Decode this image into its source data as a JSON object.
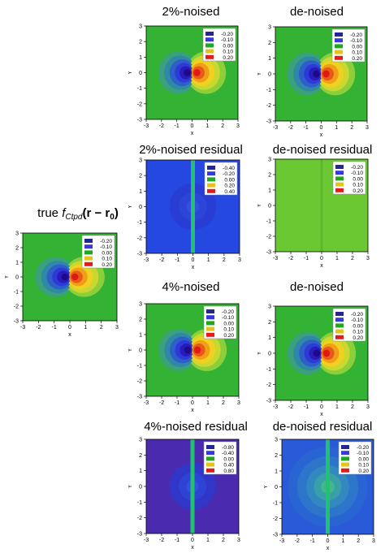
{
  "true_panel": {
    "prefix": "true ",
    "func": "f",
    "subscript": "Ctpd",
    "argument": "(r − r",
    "arg_sub": "0",
    "arg_close": ")"
  },
  "chart_data": [
    {
      "id": "true",
      "type": "heatmap",
      "title": "",
      "xlabel": "x",
      "ylabel": "Y",
      "xlim": [
        -3,
        3
      ],
      "ylim": [
        -3,
        3
      ],
      "xticks": [
        -3,
        -2,
        -1,
        0,
        1,
        2,
        3
      ],
      "yticks": [
        -3,
        -2,
        -1,
        0,
        1,
        2,
        3
      ],
      "legend": {
        "placement": "top-right",
        "levels": [
          "-0.20",
          "-0.10",
          "0.00",
          "0.10",
          "0.20"
        ],
        "colors": [
          "#262693",
          "#3838e0",
          "#1fa81f",
          "#e6c21a",
          "#e21c1c"
        ]
      },
      "field": "dipole",
      "amplitude": 0.2
    },
    {
      "id": "n2",
      "type": "heatmap",
      "title": "2%-noised",
      "xlabel": "x",
      "ylabel": "Y",
      "xlim": [
        -3,
        3
      ],
      "ylim": [
        -3,
        3
      ],
      "xticks": [
        -3,
        -2,
        -1,
        0,
        1,
        2,
        3
      ],
      "yticks": [
        -3,
        -2,
        -1,
        0,
        1,
        2,
        3
      ],
      "legend": {
        "placement": "top-right",
        "levels": [
          "-0.20",
          "-0.10",
          "0.00",
          "0.10",
          "0.20"
        ],
        "colors": [
          "#262693",
          "#3838e0",
          "#1fa81f",
          "#e6c21a",
          "#e21c1c"
        ]
      },
      "field": "dipole",
      "amplitude": 0.2
    },
    {
      "id": "dn2",
      "type": "heatmap",
      "title": "de-noised",
      "xlabel": "x",
      "ylabel": "Y",
      "xlim": [
        -3,
        3
      ],
      "ylim": [
        -3,
        3
      ],
      "xticks": [
        -3,
        -2,
        -1,
        0,
        1,
        2,
        3
      ],
      "yticks": [
        -3,
        -2,
        -1,
        0,
        1,
        2,
        3
      ],
      "legend": {
        "placement": "top-right",
        "levels": [
          "-0.20",
          "-0.10",
          "0.00",
          "0.10",
          "0.20"
        ],
        "colors": [
          "#262693",
          "#3838e0",
          "#1fa81f",
          "#e6c21a",
          "#e21c1c"
        ]
      },
      "field": "dipole",
      "amplitude": 0.2
    },
    {
      "id": "r2",
      "type": "heatmap",
      "title": "2%-noised residual",
      "xlabel": "x",
      "ylabel": "Y",
      "xlim": [
        -3,
        3
      ],
      "ylim": [
        -3,
        3
      ],
      "xticks": [
        -3,
        -2,
        -1,
        0,
        1,
        2,
        3
      ],
      "yticks": [
        -3,
        -2,
        -1,
        0,
        1,
        2,
        3
      ],
      "legend": {
        "placement": "top-right",
        "levels": [
          "-0.40",
          "-0.20",
          "0.00",
          "0.20",
          "0.40"
        ],
        "colors": [
          "#262693",
          "#3838e0",
          "#1fa81f",
          "#e6c21a",
          "#e21c1c"
        ]
      },
      "field": "residual",
      "background": "#2448e0"
    },
    {
      "id": "dr2",
      "type": "heatmap",
      "title": "de-noised residual",
      "xlabel": "x",
      "ylabel": "Y",
      "xlim": [
        -3,
        3
      ],
      "ylim": [
        -3,
        3
      ],
      "xticks": [
        -3,
        -2,
        -1,
        0,
        1,
        2,
        3
      ],
      "yticks": [
        -3,
        -2,
        -1,
        0,
        1,
        2,
        3
      ],
      "legend": {
        "placement": "top-right",
        "levels": [
          "-0.20",
          "-0.10",
          "0.00",
          "0.10",
          "0.20"
        ],
        "colors": [
          "#262693",
          "#3838e0",
          "#1fa81f",
          "#e6c21a",
          "#e21c1c"
        ]
      },
      "field": "flat",
      "background": "#6cc832"
    },
    {
      "id": "n4",
      "type": "heatmap",
      "title": "4%-noised",
      "xlabel": "x",
      "ylabel": "Y",
      "xlim": [
        -3,
        3
      ],
      "ylim": [
        -3,
        3
      ],
      "xticks": [
        -3,
        -2,
        -1,
        0,
        1,
        2,
        3
      ],
      "yticks": [
        -3,
        -2,
        -1,
        0,
        1,
        2,
        3
      ],
      "legend": {
        "placement": "top-right",
        "levels": [
          "-0.20",
          "-0.10",
          "0.00",
          "0.10",
          "0.20"
        ],
        "colors": [
          "#262693",
          "#3838e0",
          "#1fa81f",
          "#e6c21a",
          "#e21c1c"
        ]
      },
      "field": "dipole",
      "amplitude": 0.2
    },
    {
      "id": "dn4",
      "type": "heatmap",
      "title": "de-noised",
      "xlabel": "x",
      "ylabel": "Y",
      "xlim": [
        -3,
        3
      ],
      "ylim": [
        -3,
        3
      ],
      "xticks": [
        -3,
        -2,
        -1,
        0,
        1,
        2,
        3
      ],
      "yticks": [
        -3,
        -2,
        -1,
        0,
        1,
        2,
        3
      ],
      "legend": {
        "placement": "top-right",
        "levels": [
          "-0.20",
          "-0.10",
          "0.00",
          "0.10",
          "0.20"
        ],
        "colors": [
          "#262693",
          "#3838e0",
          "#1fa81f",
          "#e6c21a",
          "#e21c1c"
        ]
      },
      "field": "dipole",
      "amplitude": 0.2
    },
    {
      "id": "r4",
      "type": "heatmap",
      "title": "4%-noised residual",
      "xlabel": "x",
      "ylabel": "Y",
      "xlim": [
        -3,
        3
      ],
      "ylim": [
        -3,
        3
      ],
      "xticks": [
        -3,
        -2,
        -1,
        0,
        1,
        2,
        3
      ],
      "yticks": [
        -3,
        -2,
        -1,
        0,
        1,
        2,
        3
      ],
      "legend": {
        "placement": "top-right",
        "levels": [
          "-0.80",
          "-0.40",
          "0.00",
          "0.40",
          "0.80"
        ],
        "colors": [
          "#262693",
          "#3838e0",
          "#1fa81f",
          "#e6c21a",
          "#e21c1c"
        ]
      },
      "field": "residual",
      "background": "#4a2bb0"
    },
    {
      "id": "dr4",
      "type": "heatmap",
      "title": "de-noised residual",
      "xlabel": "x",
      "ylabel": "Y",
      "xlim": [
        -3,
        3
      ],
      "ylim": [
        -3,
        3
      ],
      "xticks": [
        -3,
        -2,
        -1,
        0,
        1,
        2,
        3
      ],
      "yticks": [
        -3,
        -2,
        -1,
        0,
        1,
        2,
        3
      ],
      "legend": {
        "placement": "top-right",
        "levels": [
          "-0.20",
          "-0.10",
          "0.00",
          "0.10",
          "0.20"
        ],
        "colors": [
          "#262693",
          "#3838e0",
          "#1fa81f",
          "#e6c21a",
          "#e21c1c"
        ]
      },
      "field": "residual_rings",
      "background": "#2a5ad8"
    }
  ]
}
